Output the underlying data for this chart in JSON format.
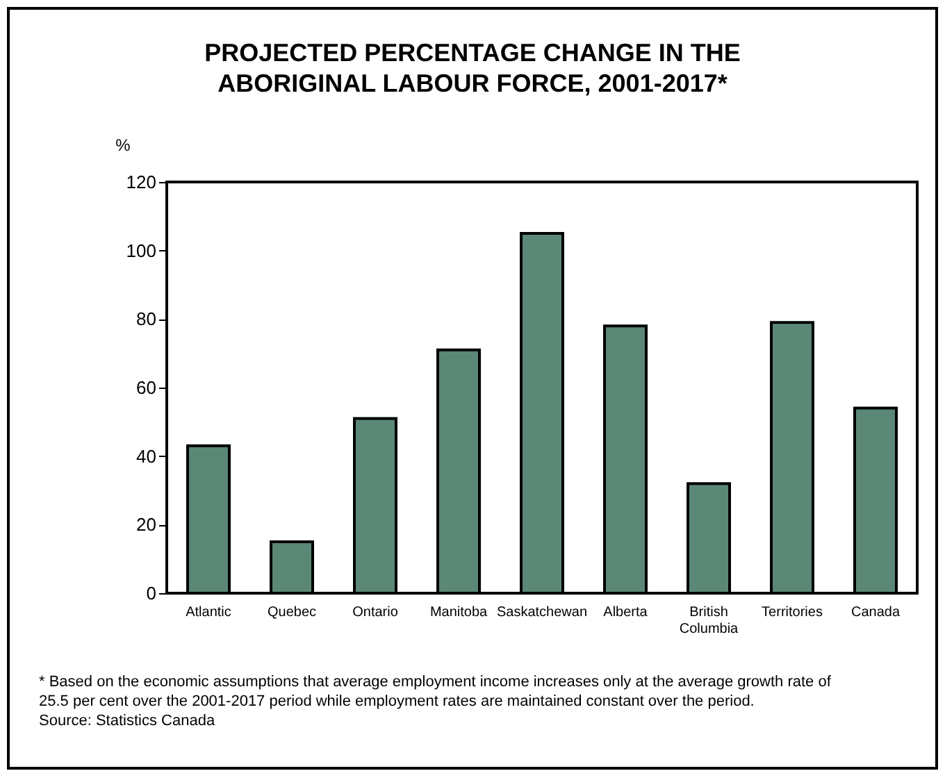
{
  "chart_data": {
    "type": "bar",
    "title": "PROJECTED PERCENTAGE CHANGE IN THE ABORIGINAL LABOUR FORCE, 2001-2017*",
    "ylabel": "%",
    "categories": [
      "Atlantic",
      "Quebec",
      "Ontario",
      "Manitoba",
      "Saskatchewan",
      "Alberta",
      "British Columbia",
      "Territories",
      "Canada"
    ],
    "values": [
      43,
      15,
      51,
      71,
      105,
      78,
      32,
      79,
      54
    ],
    "color": "#5b8876",
    "ylim": [
      0,
      120
    ],
    "yticks": [
      0,
      20,
      40,
      60,
      80,
      100,
      120
    ],
    "grid": false,
    "annotations": [
      "* Based on the economic assumptions that average employment income increases only at the average growth rate of 25.5 per cent over the 2001-2017 period while employment rates are maintained constant over the period.",
      "Source: Statistics Canada"
    ]
  }
}
